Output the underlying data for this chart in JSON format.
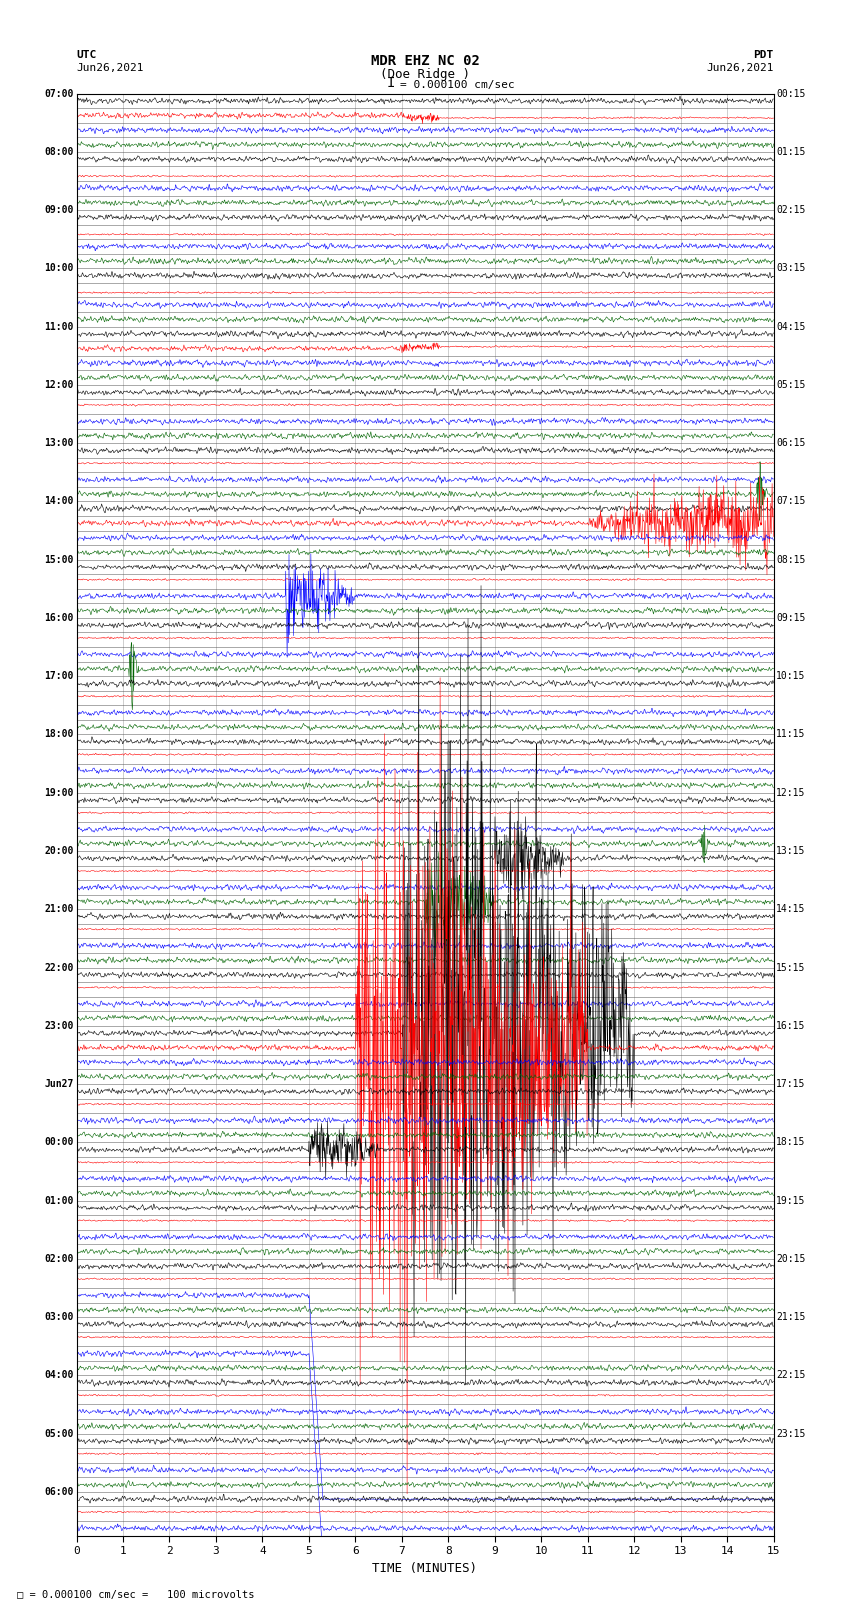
{
  "title_line1": "MDR EHZ NC 02",
  "title_line2": "(Doe Ridge )",
  "scale_text": "= 0.000100 cm/sec",
  "footer_text": "= 0.000100 cm/sec =   100 microvolts",
  "utc_label": "UTC",
  "utc_date": "Jun26,2021",
  "pdt_label": "PDT",
  "pdt_date": "Jun26,2021",
  "xlabel": "TIME (MINUTES)",
  "bg_color": "#ffffff",
  "trace_colors": [
    "#000000",
    "#ff0000",
    "#0000ff",
    "#006400"
  ],
  "x_min": 0,
  "x_max": 15,
  "x_ticks": [
    0,
    1,
    2,
    3,
    4,
    5,
    6,
    7,
    8,
    9,
    10,
    11,
    12,
    13,
    14,
    15
  ],
  "left_labels": [
    "07:00",
    "",
    "",
    "",
    "08:00",
    "",
    "",
    "",
    "09:00",
    "",
    "",
    "",
    "10:00",
    "",
    "",
    "",
    "11:00",
    "",
    "",
    "",
    "12:00",
    "",
    "",
    "",
    "13:00",
    "",
    "",
    "",
    "14:00",
    "",
    "",
    "",
    "15:00",
    "",
    "",
    "",
    "16:00",
    "",
    "",
    "",
    "17:00",
    "",
    "",
    "",
    "18:00",
    "",
    "",
    "",
    "19:00",
    "",
    "",
    "",
    "20:00",
    "",
    "",
    "",
    "21:00",
    "",
    "",
    "",
    "22:00",
    "",
    "",
    "",
    "23:00",
    "",
    "",
    "",
    "Jun27",
    "",
    "",
    "",
    "00:00",
    "",
    "",
    "",
    "01:00",
    "",
    "",
    "",
    "02:00",
    "",
    "",
    "",
    "03:00",
    "",
    "",
    "",
    "04:00",
    "",
    "",
    "",
    "05:00",
    "",
    "",
    "",
    "06:00",
    "",
    ""
  ],
  "right_labels": [
    "00:15",
    "",
    "",
    "",
    "01:15",
    "",
    "",
    "",
    "02:15",
    "",
    "",
    "",
    "03:15",
    "",
    "",
    "",
    "04:15",
    "",
    "",
    "",
    "05:15",
    "",
    "",
    "",
    "06:15",
    "",
    "",
    "",
    "07:15",
    "",
    "",
    "",
    "08:15",
    "",
    "",
    "",
    "09:15",
    "",
    "",
    "",
    "10:15",
    "",
    "",
    "",
    "11:15",
    "",
    "",
    "",
    "12:15",
    "",
    "",
    "",
    "13:15",
    "",
    "",
    "",
    "14:15",
    "",
    "",
    "",
    "15:15",
    "",
    "",
    "",
    "16:15",
    "",
    "",
    "",
    "17:15",
    "",
    "",
    "",
    "18:15",
    "",
    "",
    "",
    "19:15",
    "",
    "",
    "",
    "20:15",
    "",
    "",
    "",
    "21:15",
    "",
    "",
    "",
    "22:15",
    "",
    "",
    "",
    "23:15",
    "",
    ""
  ],
  "seed": 12345
}
